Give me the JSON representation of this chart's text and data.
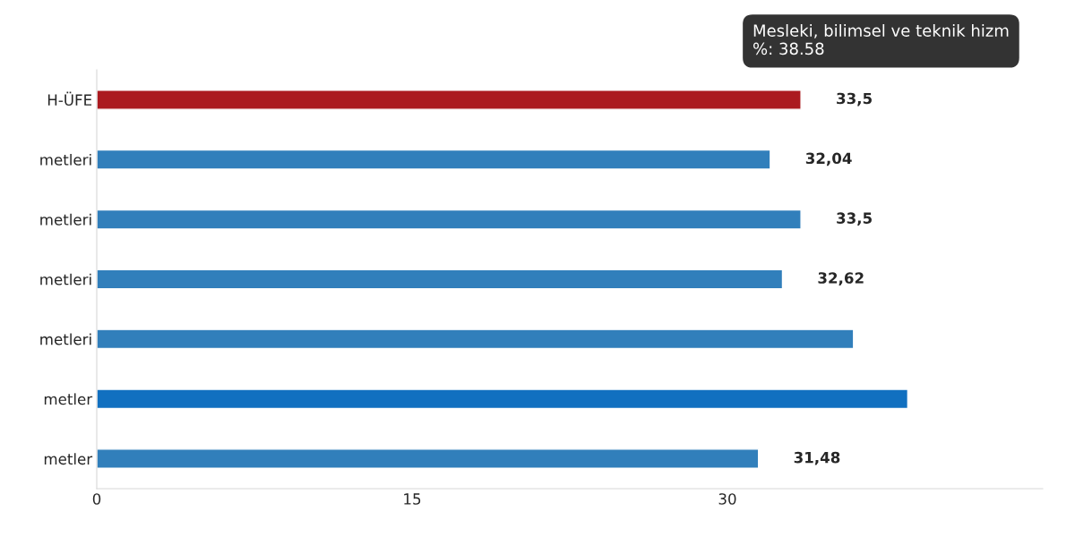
{
  "chart_data": {
    "type": "bar",
    "orientation": "horizontal",
    "categories": [
      "H-ÜFE",
      "metleri",
      "metleri",
      "metleri",
      "metleri",
      "metler",
      "metler"
    ],
    "values": [
      33.5,
      32.04,
      33.5,
      32.62,
      36,
      38.58,
      31.48
    ],
    "colors": [
      "#ab1a1f",
      "#317fbb",
      "#317fbb",
      "#317fbb",
      "#317fbb",
      "#1170c0",
      "#317fbb"
    ],
    "value_labels": [
      "33,5",
      "32,04",
      "33,5",
      "32,62",
      null,
      null,
      "31,48"
    ],
    "xlim": [
      0,
      45
    ],
    "xticks": [
      0,
      15,
      30
    ],
    "annotations": [
      "Mesleki, bilimsel ve teknik hizm",
      "%: 38.58"
    ],
    "grid": false,
    "legend": false
  }
}
